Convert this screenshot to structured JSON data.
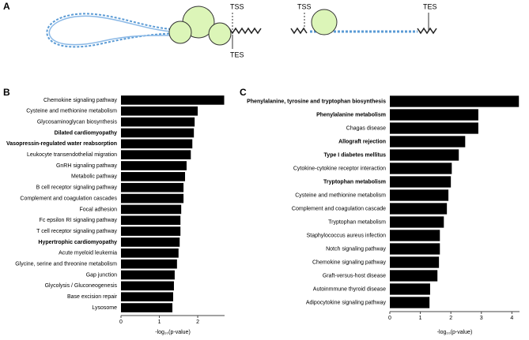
{
  "diagram": {
    "label": "A",
    "tss_left": "TSS",
    "tes_left": "TES",
    "tss_right": "TSS",
    "tes_right": "TES"
  },
  "chart_data": [
    {
      "type": "bar",
      "orientation": "horizontal",
      "panel_label": "B",
      "xlabel": "-log₁₀(p-value)",
      "color": "#000000",
      "categories": [
        "Chemokine signaling pathway",
        "Cysteine and methionine metabolism",
        "Glycosaminoglycan biosynthesis",
        "Dilated cardiomyopathy",
        "Vasopressin-regulated water reabsorption",
        "Leukocyte transendothelial migration",
        "GnRH signaling pathway",
        "Metabolic pathway",
        "B cell receptor signaling pathway",
        "Complement and coagulation cascades",
        "Focal adhesion",
        "Fc epsilon RI signaling pathway",
        "T cell receptor signaling pathway",
        "Hypertrophic cardiomyopathy",
        "Acute myeloid leukemia",
        "Glycine, serine and threonine metabolism",
        "Gap junction",
        "Glycolysis / Gluconeogenesis",
        "Base excision repair",
        "Lysosome"
      ],
      "category_colors": [
        "#000000",
        "#000000",
        "#000000",
        "#e02020",
        "#e02020",
        "#000000",
        "#000000",
        "#000000",
        "#000000",
        "#000000",
        "#000000",
        "#000000",
        "#000000",
        "#e02020",
        "#000000",
        "#000000",
        "#000000",
        "#000000",
        "#000000",
        "#000000"
      ],
      "values": [
        2.69,
        2.0,
        1.92,
        1.9,
        1.86,
        1.82,
        1.71,
        1.67,
        1.63,
        1.63,
        1.57,
        1.55,
        1.55,
        1.53,
        1.5,
        1.46,
        1.4,
        1.38,
        1.36,
        1.34
      ],
      "xlim": [
        0,
        2.7
      ],
      "xticks": [
        0,
        1,
        2
      ]
    },
    {
      "type": "bar",
      "orientation": "horizontal",
      "panel_label": "C",
      "xlabel": "-log₁₀(p-value)",
      "color": "#000000",
      "categories": [
        "Phenylalanine, tyrosine and tryptophan biosynthesis",
        "Phenylalanine metabolism",
        "Chagas disease",
        "Allograft rejection",
        "Type I diabetes mellitus",
        "Cytokine-cytokine receptor interaction",
        "Tryptophan metabolism",
        "Cysteine and methionine metabolism",
        "Complement and coagulation cascade",
        "Tryptophan metabolism",
        "Staphylococcus aureus infection",
        "Notch signaling pathway",
        "Chemokine signaling pathway",
        "Graft-versus-host disease",
        "Autoinmmune thyroid disease",
        "Adipocytokine signaling pathway"
      ],
      "category_colors": [
        "#e02020",
        "#e02020",
        "#000000",
        "#e02020",
        "#e02020",
        "#000000",
        "#e02020",
        "#000000",
        "#000000",
        "#000000",
        "#000000",
        "#000000",
        "#000000",
        "#000000",
        "#000000",
        "#000000"
      ],
      "values": [
        4.23,
        2.9,
        2.9,
        2.47,
        2.26,
        2.03,
        2.0,
        1.92,
        1.87,
        1.77,
        1.64,
        1.64,
        1.61,
        1.56,
        1.32,
        1.3
      ],
      "xlim": [
        0,
        4.25
      ],
      "xticks": [
        0,
        1,
        2,
        3,
        4
      ]
    }
  ]
}
